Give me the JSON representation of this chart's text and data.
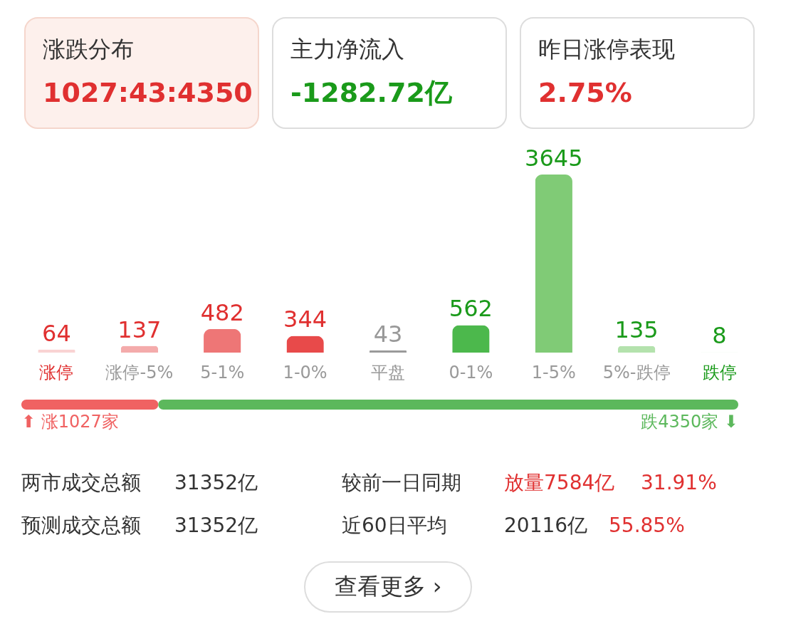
{
  "chart_data": [
    {
      "type": "other",
      "annotations": [
        "涨跌分布",
        "1027:43:4350",
        "主力净流入",
        "-1282.72亿",
        "昨日涨停表现",
        "2.75%"
      ]
    },
    {
      "type": "bar",
      "categories": [
        "涨停",
        "涨停-5%",
        "5-1%",
        "1-0%",
        "平盘",
        "0-1%",
        "1-5%",
        "5%-跌停",
        "跌停"
      ],
      "values": [
        64,
        137,
        482,
        344,
        43,
        562,
        3645,
        135,
        8
      ],
      "colors": [
        "#f9d3d3",
        "#f4abab",
        "#ee7676",
        "#e84a4a",
        "#9a9a9a",
        "#4cb84c",
        "#80cb76",
        "#b4e2ad",
        "#d8efd4"
      ],
      "data_labels": true
    },
    {
      "type": "bar",
      "orientation": "horizontal",
      "stacked": true,
      "categories": [
        null
      ],
      "series": [
        {
          "color": "#f06262",
          "values": [
            1027
          ],
          "value_labels": [
            "⬆ 涨1027家"
          ]
        },
        {
          "color": "#5cb85c",
          "values": [
            4350
          ],
          "value_labels": [
            "跌4350家 ⬇"
          ]
        }
      ]
    },
    {
      "type": "other",
      "annotations": [
        "两市成交总额",
        "31352亿",
        "较前一日同期",
        "放量7584亿",
        "31.91%",
        "预测成交总额",
        "31352亿",
        "近60日平均",
        "20116亿",
        "55.85%",
        "查看更多 ›"
      ]
    }
  ]
}
